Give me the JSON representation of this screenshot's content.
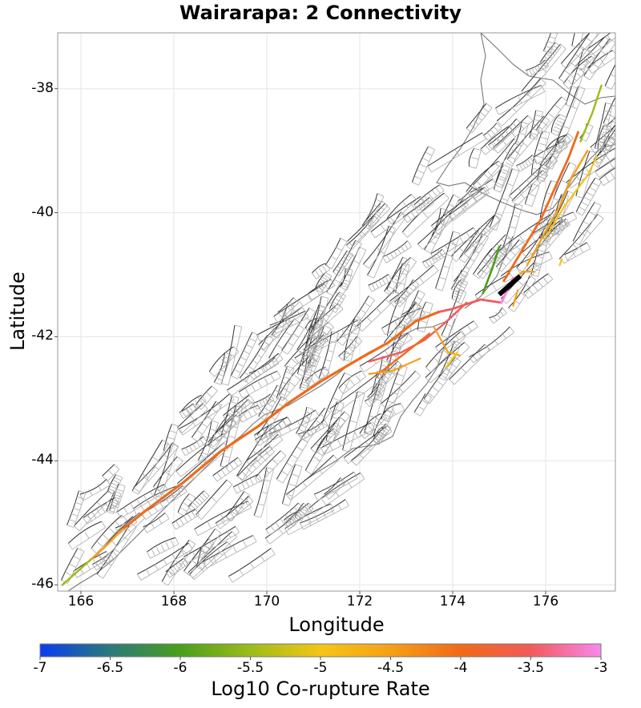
{
  "title": "Wairarapa: 2 Connectivity",
  "map": {
    "x_label": "Longitude",
    "y_label": "Latitude",
    "x_range": [
      165.5,
      177.5
    ],
    "y_range": [
      -46.1,
      -37.1
    ],
    "x_ticks": [
      "166",
      "168",
      "170",
      "172",
      "174",
      "176"
    ],
    "y_ticks": [
      "-38",
      "-40",
      "-42",
      "-44",
      "-46"
    ],
    "x_tick_values": [
      166,
      168,
      170,
      172,
      174,
      176
    ],
    "y_tick_values": [
      -38,
      -40,
      -42,
      -44,
      -46
    ]
  },
  "colorbar": {
    "label": "Log10 Co-rupture Rate",
    "min": -7,
    "max": -3,
    "ticks": [
      "-7",
      "-6.5",
      "-6",
      "-5.5",
      "-5",
      "-4.5",
      "-4",
      "-3.5",
      "-3"
    ],
    "tick_values": [
      -7,
      -6.5,
      -6,
      -5.5,
      -5,
      -4.5,
      -4,
      -3.5,
      -3
    ],
    "stops": [
      "#0a3cf0",
      "#2a7a7a",
      "#4a9e1c",
      "#9cbc1a",
      "#f5c518",
      "#f5a018",
      "#f06a18",
      "#f25a5a",
      "#f988ee"
    ]
  },
  "colors": {
    "frame": "#999999",
    "grid": "#e6e6e6",
    "fault_trace": "#333333",
    "fault_surface": "#aaaaaa",
    "coastline": "#777777",
    "selected_fault": "#000000"
  }
}
